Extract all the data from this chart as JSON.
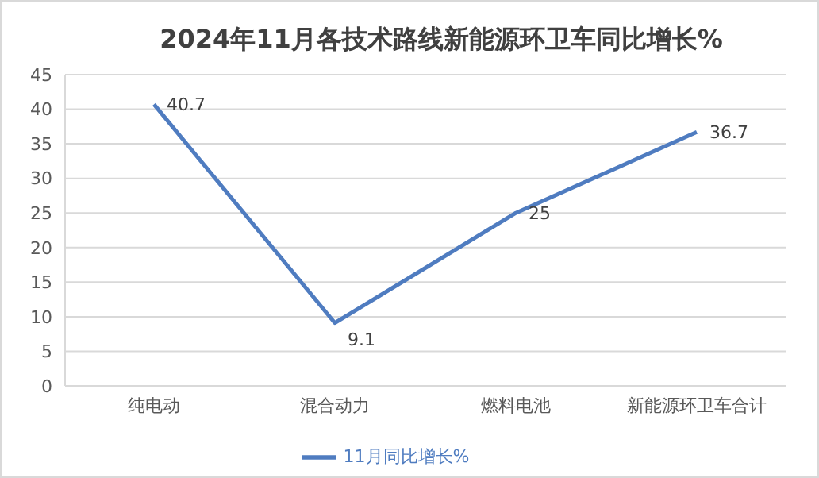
{
  "chart_data": {
    "type": "line",
    "title": "2024年11月各技术路线新能源环卫车同比增长%",
    "categories": [
      "纯电动",
      "混合动力",
      "燃料电池",
      "新能源环卫车合计"
    ],
    "series": [
      {
        "name": "11月同比增长%",
        "color": "#4f7cc0",
        "values": [
          40.7,
          9.1,
          25,
          36.7
        ]
      }
    ],
    "ylim": [
      0,
      45
    ],
    "yticks": [
      0,
      5,
      10,
      15,
      20,
      25,
      30,
      35,
      40,
      45
    ],
    "grid": "y",
    "legend": "bottom",
    "data_labels": true,
    "marker": "none",
    "line_style": "solid"
  }
}
